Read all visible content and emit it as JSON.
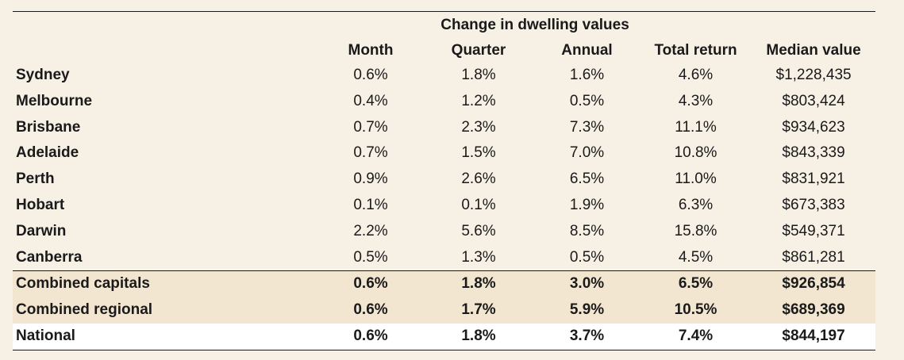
{
  "table": {
    "group_header": "Change in dwelling values",
    "columns": [
      "Month",
      "Quarter",
      "Annual",
      "Total return",
      "Median value"
    ],
    "rows": [
      {
        "name": "Sydney",
        "month": "0.6%",
        "quarter": "1.8%",
        "annual": "1.6%",
        "total": "4.6%",
        "median": "$1,228,435"
      },
      {
        "name": "Melbourne",
        "month": "0.4%",
        "quarter": "1.2%",
        "annual": "0.5%",
        "total": "4.3%",
        "median": "$803,424"
      },
      {
        "name": "Brisbane",
        "month": "0.7%",
        "quarter": "2.3%",
        "annual": "7.3%",
        "total": "11.1%",
        "median": "$934,623"
      },
      {
        "name": "Adelaide",
        "month": "0.7%",
        "quarter": "1.5%",
        "annual": "7.0%",
        "total": "10.8%",
        "median": "$843,339"
      },
      {
        "name": "Perth",
        "month": "0.9%",
        "quarter": "2.6%",
        "annual": "6.5%",
        "total": "11.0%",
        "median": "$831,921"
      },
      {
        "name": "Hobart",
        "month": "0.1%",
        "quarter": "0.1%",
        "annual": "1.9%",
        "total": "6.3%",
        "median": "$673,383"
      },
      {
        "name": "Darwin",
        "month": "2.2%",
        "quarter": "5.6%",
        "annual": "8.5%",
        "total": "15.8%",
        "median": "$549,371"
      },
      {
        "name": "Canberra",
        "month": "0.5%",
        "quarter": "1.3%",
        "annual": "0.5%",
        "total": "4.5%",
        "median": "$861,281"
      }
    ],
    "summary_rows": [
      {
        "name": "Combined capitals",
        "month": "0.6%",
        "quarter": "1.8%",
        "annual": "3.0%",
        "total": "6.5%",
        "median": "$926,854"
      },
      {
        "name": "Combined regional",
        "month": "0.6%",
        "quarter": "1.7%",
        "annual": "5.9%",
        "total": "10.5%",
        "median": "$689,369"
      }
    ],
    "national_row": {
      "name": "National",
      "month": "0.6%",
      "quarter": "1.8%",
      "annual": "3.7%",
      "total": "7.4%",
      "median": "$844,197"
    }
  },
  "colors": {
    "background": "#f6f0e5",
    "summary_band": "#f3e6d1",
    "national_band": "#ffffff",
    "rule": "#1a1a1a"
  }
}
